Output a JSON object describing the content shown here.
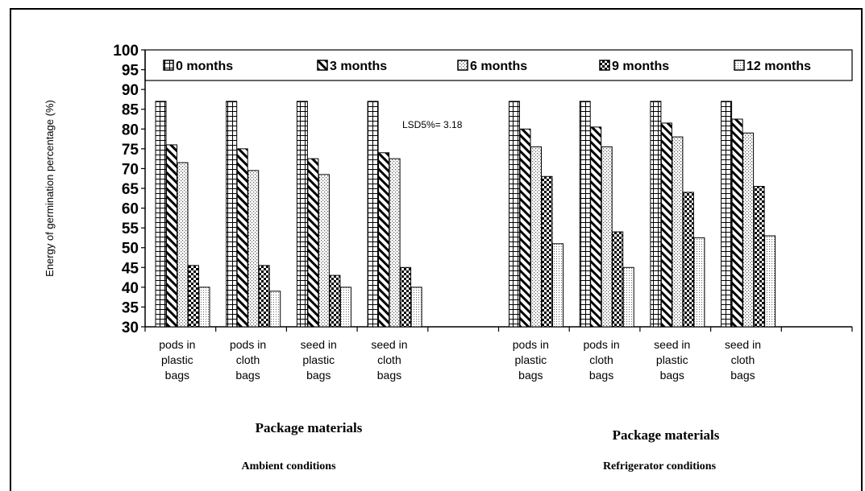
{
  "chart_data": {
    "type": "bar",
    "ylabel": "Energy of germination percentage (%)",
    "ylim": [
      30,
      100
    ],
    "yticks": [
      30,
      35,
      40,
      45,
      50,
      55,
      60,
      65,
      70,
      75,
      80,
      85,
      90,
      95,
      100
    ],
    "legend_position": "top",
    "series": [
      {
        "name": "0 months",
        "pattern": "grid"
      },
      {
        "name": "3 months",
        "pattern": "diagonal"
      },
      {
        "name": "6 months",
        "pattern": "dots"
      },
      {
        "name": "9 months",
        "pattern": "checker"
      },
      {
        "name": "12 months",
        "pattern": "fine-dots"
      }
    ],
    "groups": [
      {
        "title": "Package materials",
        "condition": "Ambient conditions",
        "categories": [
          {
            "label": [
              "pods in",
              "plastic",
              "bags"
            ],
            "values": [
              87,
              76,
              71.5,
              45.5,
              40
            ]
          },
          {
            "label": [
              "pods in",
              "cloth",
              "bags"
            ],
            "values": [
              87,
              75,
              69.5,
              45.5,
              39
            ]
          },
          {
            "label": [
              "seed in",
              "plastic",
              "bags"
            ],
            "values": [
              87,
              72.5,
              68.5,
              43,
              40
            ]
          },
          {
            "label": [
              "seed in",
              "cloth",
              "bags"
            ],
            "values": [
              87,
              74,
              72.5,
              45,
              40
            ]
          }
        ]
      },
      {
        "title": "Package materials",
        "condition": "Refrigerator conditions",
        "categories": [
          {
            "label": [
              "pods in",
              "plastic",
              "bags"
            ],
            "values": [
              87,
              80,
              75.5,
              68,
              51
            ]
          },
          {
            "label": [
              "pods in",
              "cloth",
              "bags"
            ],
            "values": [
              87,
              80.5,
              75.5,
              54,
              45
            ]
          },
          {
            "label": [
              "seed in",
              "plastic",
              "bags"
            ],
            "values": [
              87,
              81.5,
              78,
              64,
              52.5
            ]
          },
          {
            "label": [
              "seed in",
              "cloth",
              "bags"
            ],
            "values": [
              87,
              82.5,
              79,
              65.5,
              53
            ]
          }
        ]
      }
    ],
    "annotations": [
      "LSD5%= 3.18"
    ]
  }
}
